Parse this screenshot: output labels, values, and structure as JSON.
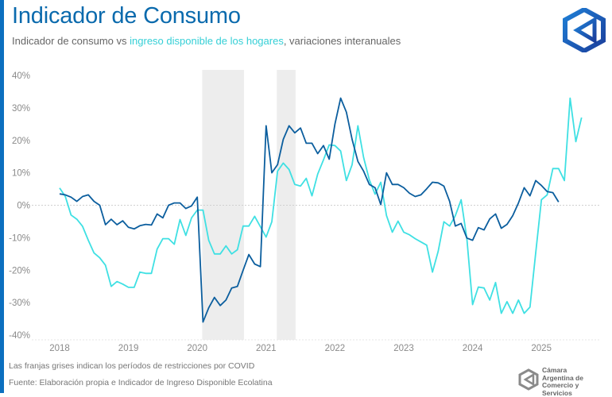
{
  "header": {
    "title": "Indicador de Consumo",
    "subtitle_part1": "Indicador de consumo vs ",
    "subtitle_highlight": "ingreso disponible de los hogares",
    "subtitle_part2": ", variaciones interanuales"
  },
  "footer": {
    "note": "Las franjas grises indican los períodos de restricciones por COVID",
    "source": "Fuente: Elaboración propia e Indicador de Ingreso Disponible Ecolatina",
    "brand_line1": "Cámara",
    "brand_line2": "Argentina de",
    "brand_line3": "Comercio y Servicios"
  },
  "colors": {
    "brand_blue": "#0a6aad",
    "consumo": "#0b5e9e",
    "ingreso": "#3fe0e3",
    "shade": "#ededed",
    "zero_line": "#d0d0d0"
  },
  "chart_data": {
    "type": "line",
    "title": "Indicador de Consumo",
    "subtitle": "Indicador de consumo vs ingreso disponible de los hogares, variaciones interanuales",
    "xlabel": "",
    "ylabel": "",
    "x_start": "2018-01",
    "frequency": "monthly",
    "xtick_labels": [
      "2018",
      "2019",
      "2020",
      "2021",
      "2022",
      "2023",
      "2024",
      "2025"
    ],
    "ytick_labels": [
      "40%",
      "30%",
      "20%",
      "10%",
      "0%",
      "-10%",
      "-20%",
      "-30%",
      "-40%"
    ],
    "ylim": [
      -40,
      40
    ],
    "grid": false,
    "zero_line": true,
    "shaded_periods": [
      {
        "label": "COVID restricciones",
        "start": "2020-02",
        "end": "2020-09"
      },
      {
        "label": "COVID restricciones",
        "start": "2021-03",
        "end": "2021-06"
      }
    ],
    "series": [
      {
        "name": "Indicador de consumo",
        "color": "#0b5e9e",
        "values": [
          3.5,
          3.2,
          2.5,
          1.2,
          2.7,
          3.2,
          1.2,
          0.0,
          -6.0,
          -4.3,
          -6.0,
          -4.8,
          -6.8,
          -7.3,
          -6.3,
          -5.9,
          -6.1,
          -2.7,
          -3.9,
          0.0,
          0.7,
          0.7,
          -1.0,
          -0.2,
          2.5,
          -36.0,
          -31.6,
          -28.4,
          -30.9,
          -29.2,
          -25.5,
          -25.0,
          -20.0,
          -15.2,
          -18.1,
          -18.9,
          24.5,
          10.0,
          12.5,
          20.3,
          24.5,
          22.3,
          23.8,
          19.1,
          19.1,
          15.9,
          18.4,
          14.2,
          25.0,
          33.0,
          28.7,
          20.3,
          13.5,
          10.5,
          6.4,
          5.4,
          0.2,
          10.0,
          6.4,
          6.4,
          5.4,
          3.7,
          2.7,
          3.2,
          5.1,
          7.1,
          6.9,
          5.9,
          1.2,
          -6.4,
          -5.6,
          -10.1,
          -10.8,
          -6.9,
          -7.6,
          -4.2,
          -2.7,
          -7.1,
          -5.9,
          -3.2,
          0.7,
          5.4,
          2.9,
          7.6,
          6.1,
          4.2,
          3.9,
          1.0
        ]
      },
      {
        "name": "Ingreso disponible de los hogares",
        "color": "#3fe0e3",
        "values": [
          5.3,
          2.7,
          -3.0,
          -4.3,
          -6.5,
          -10.8,
          -14.7,
          -16.2,
          -18.5,
          -25.0,
          -23.5,
          -24.3,
          -25.3,
          -25.3,
          -20.6,
          -21.0,
          -21.0,
          -13.5,
          -10.3,
          -10.3,
          -12.0,
          -4.4,
          -9.3,
          -3.9,
          -1.5,
          -1.5,
          -10.8,
          -15.0,
          -15.0,
          -12.5,
          -15.0,
          -13.7,
          -6.4,
          -6.4,
          -3.4,
          -6.6,
          -9.8,
          -5.1,
          10.5,
          13.0,
          11.0,
          6.4,
          5.9,
          8.3,
          2.9,
          9.6,
          14.0,
          18.6,
          18.4,
          16.7,
          7.6,
          12.5,
          24.5,
          14.7,
          7.8,
          3.4,
          7.1,
          -3.2,
          -8.3,
          -4.9,
          -8.3,
          -9.1,
          -10.3,
          -11.3,
          -12.3,
          -20.6,
          -14.2,
          -5.1,
          -6.4,
          -3.2,
          1.7,
          -10.3,
          -30.6,
          -25.2,
          -25.5,
          -29.2,
          -23.8,
          -33.3,
          -29.7,
          -33.3,
          -29.2,
          -33.3,
          -31.4,
          -14.7,
          1.7,
          3.2,
          11.3,
          11.3,
          7.6,
          33.0,
          19.6,
          27.0
        ]
      }
    ]
  }
}
